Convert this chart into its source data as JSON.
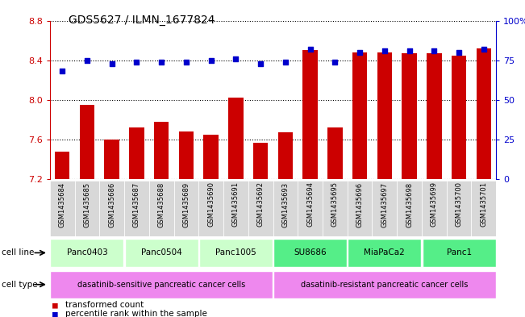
{
  "title": "GDS5627 / ILMN_1677824",
  "samples": [
    "GSM1435684",
    "GSM1435685",
    "GSM1435686",
    "GSM1435687",
    "GSM1435688",
    "GSM1435689",
    "GSM1435690",
    "GSM1435691",
    "GSM1435692",
    "GSM1435693",
    "GSM1435694",
    "GSM1435695",
    "GSM1435696",
    "GSM1435697",
    "GSM1435698",
    "GSM1435699",
    "GSM1435700",
    "GSM1435701"
  ],
  "bar_values": [
    7.48,
    7.95,
    7.6,
    7.72,
    7.78,
    7.68,
    7.65,
    8.02,
    7.57,
    7.67,
    8.5,
    7.72,
    8.48,
    8.48,
    8.47,
    8.47,
    8.45,
    8.52
  ],
  "percentile_values": [
    68,
    75,
    73,
    74,
    74,
    74,
    75,
    76,
    73,
    74,
    82,
    74,
    80,
    81,
    81,
    81,
    80,
    82
  ],
  "bar_color": "#cc0000",
  "percentile_color": "#0000cc",
  "ylim_left": [
    7.2,
    8.8
  ],
  "ylim_right": [
    0,
    100
  ],
  "yticks_left": [
    7.2,
    7.6,
    8.0,
    8.4,
    8.8
  ],
  "yticks_right": [
    0,
    25,
    50,
    75,
    100
  ],
  "ytick_labels_right": [
    "0",
    "25",
    "50",
    "75",
    "100%"
  ],
  "cell_lines": [
    {
      "label": "Panc0403",
      "start": 0,
      "end": 3
    },
    {
      "label": "Panc0504",
      "start": 3,
      "end": 6
    },
    {
      "label": "Panc1005",
      "start": 6,
      "end": 9
    },
    {
      "label": "SU8686",
      "start": 9,
      "end": 12
    },
    {
      "label": "MiaPaCa2",
      "start": 12,
      "end": 15
    },
    {
      "label": "Panc1",
      "start": 15,
      "end": 18
    }
  ],
  "cell_line_colors_map": {
    "Panc0403": "#ccffcc",
    "Panc0504": "#ccffcc",
    "Panc1005": "#ccffcc",
    "SU8686": "#55ee88",
    "MiaPaCa2": "#55ee88",
    "Panc1": "#55ee88"
  },
  "cell_types": [
    {
      "label": "dasatinib-sensitive pancreatic cancer cells",
      "start": 0,
      "end": 9,
      "color": "#ee88ee"
    },
    {
      "label": "dasatinib-resistant pancreatic cancer cells",
      "start": 9,
      "end": 18,
      "color": "#ee88ee"
    }
  ],
  "legend_items": [
    {
      "label": "transformed count",
      "color": "#cc0000"
    },
    {
      "label": "percentile rank within the sample",
      "color": "#0000cc"
    }
  ],
  "bar_color_spine": "#cc0000",
  "grid_color": "black",
  "grid_linestyle": "dotted",
  "grid_linewidth": 0.8
}
